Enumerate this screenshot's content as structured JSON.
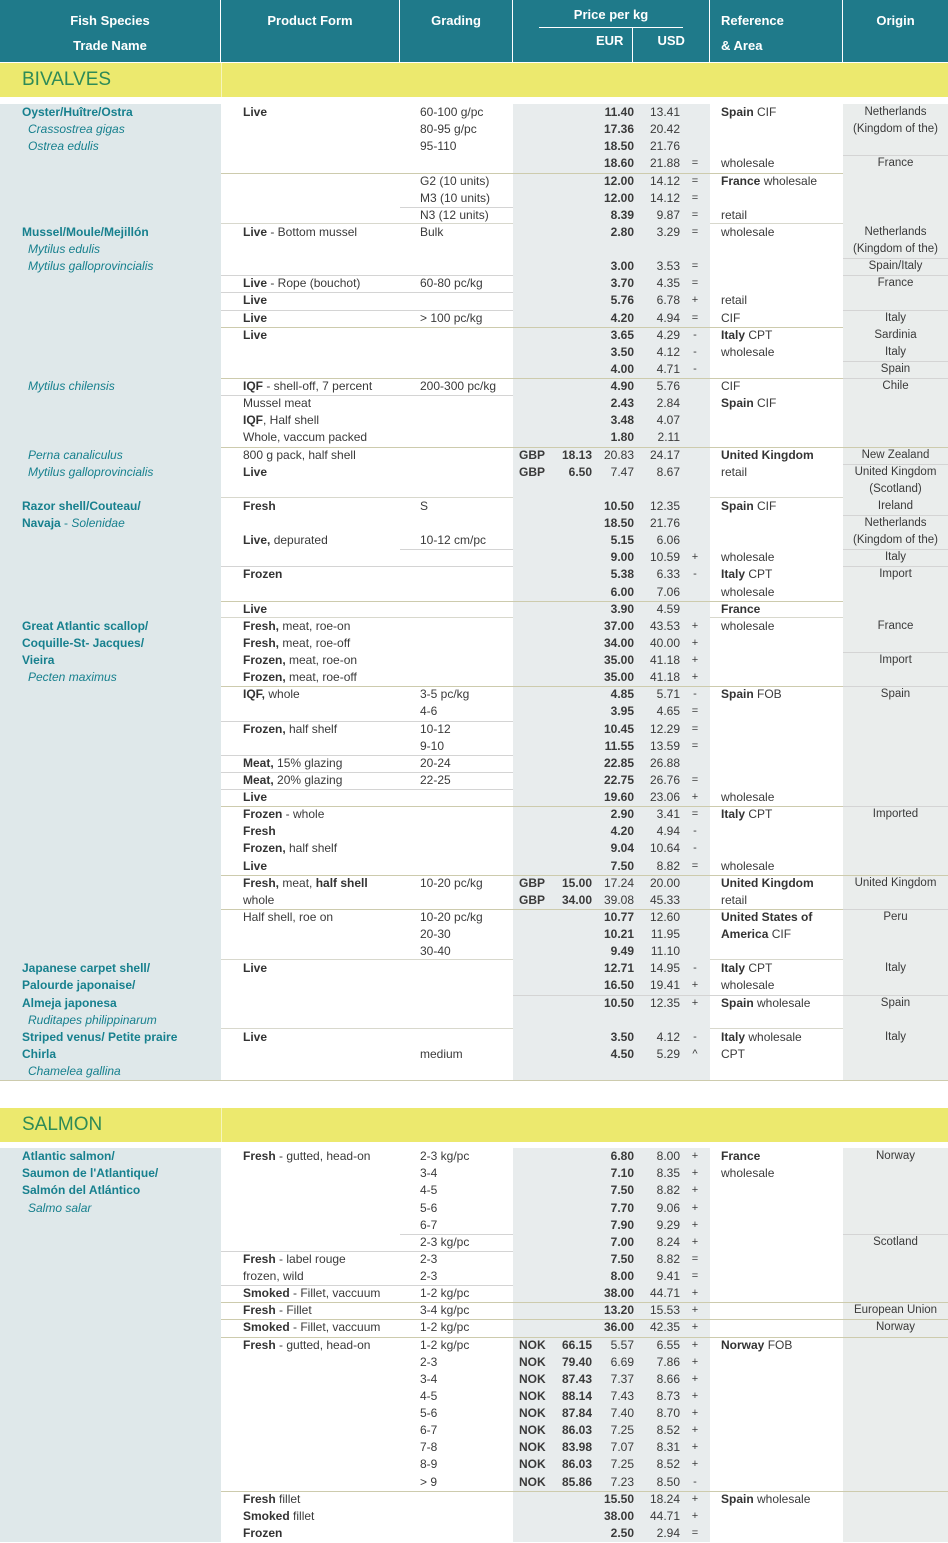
{
  "header": {
    "species_line1": "Fish Species",
    "species_line2": "Trade Name",
    "product_form": "Product Form",
    "grading": "Grading",
    "price": "Price per kg",
    "eur": "EUR",
    "usd": "USD",
    "reference_line1": "Reference",
    "reference_line2": "& Area",
    "origin": "Origin"
  },
  "colors": {
    "header_bg": "#1f7a8a",
    "band_bg": "#ece96e",
    "band_text": "#2e8b57",
    "species_text": "#17808e",
    "species_col_bg": "#dfe8ea",
    "price_block_bg": "#e8eced",
    "origin_col_bg": "#eaedec",
    "body_text": "#3a3a3a"
  },
  "sections": [
    {
      "title": "BIVALVES",
      "groups": [
        {
          "rows": [
            {
              "sp": "**Oyster/Huître/Ostra**",
              "f": "**Live**",
              "g": "60-100 g/pc",
              "e": "11.40",
              "u": "13.41",
              "r": "**Spain** CIF",
              "o": "Netherlands"
            },
            {
              "sp": "*Crassostrea gigas*",
              "g": "80-95 g/pc",
              "e": "17.36",
              "u": "20.42",
              "o": "(Kingdom of the)"
            },
            {
              "sp": "*Ostrea edulis*",
              "g": "95-110",
              "e": "18.50",
              "u": "21.76"
            },
            {
              "e": "18.60",
              "u": "21.88",
              "s": "=",
              "r": "wholesale",
              "o": "France",
              "sep": [
                "o"
              ]
            },
            {
              "g": "G2 (10 units)",
              "e": "12.00",
              "u": "14.12",
              "s": "=",
              "r": "**France** wholesale",
              "sep": [
                "fr"
              ]
            },
            {
              "g": "M3 (10 units)",
              "e": "12.00",
              "u": "14.12",
              "s": "="
            },
            {
              "g": "N3 (12 units)",
              "e": "8.39",
              "u": "9.87",
              "s": "=",
              "r": "retail",
              "sep": [
                "g"
              ]
            }
          ]
        },
        {
          "rows": [
            {
              "sp": "**Mussel/Moule/Mejillón**",
              "f": "**Live** - Bottom mussel",
              "g": "Bulk",
              "e": "2.80",
              "u": "3.29",
              "s": "=",
              "r": "wholesale",
              "o": "Netherlands"
            },
            {
              "sp": "*Mytilus edulis*",
              "o": "(Kingdom of the)"
            },
            {
              "sp": "*Mytilus galloprovincialis*",
              "e": "3.00",
              "u": "3.53",
              "s": "=",
              "o": "Spain/Italy",
              "sep": [
                "o"
              ]
            },
            {
              "f": "**Live** - Rope (bouchot)",
              "g": "60-80 pc/kg",
              "e": "3.70",
              "u": "4.35",
              "s": "=",
              "o": "France",
              "sep": [
                "fg",
                "o"
              ]
            },
            {
              "f": "**Live**",
              "e": "5.76",
              "u": "6.78",
              "s": "+",
              "r": "retail",
              "sep": [
                "fg"
              ]
            },
            {
              "f": "**Live**",
              "g": "> 100 pc/kg",
              "e": "4.20",
              "u": "4.94",
              "s": "=",
              "r": "CIF",
              "o": "Italy",
              "sep": [
                "fg",
                "o"
              ]
            },
            {
              "f": "**Live**",
              "e": "3.65",
              "u": "4.29",
              "s": "-",
              "r": "**Italy** CPT",
              "o": "Sardinia",
              "sep": [
                "fr"
              ]
            },
            {
              "e": "3.50",
              "u": "4.12",
              "s": "-",
              "r": "wholesale",
              "o": "Italy"
            },
            {
              "e": "4.00",
              "u": "4.71",
              "s": "-",
              "o": "Spain",
              "sep": [
                "o"
              ]
            },
            {
              "sp": "*Mytilus chilensis*",
              "f": "**IQF** - shell-off, 7 percent",
              "g": "200-300 pc/kg",
              "e": "4.90",
              "u": "5.76",
              "r": "CIF",
              "o": "Chile",
              "sep": [
                "fr",
                "o"
              ]
            },
            {
              "f": "Mussel meat",
              "e": "2.43",
              "u": "2.84",
              "r": "**Spain** CIF",
              "sep": [
                "fg"
              ]
            },
            {
              "f": "**IQF**, Half shell",
              "e": "3.48",
              "u": "4.07"
            },
            {
              "f": "Whole, vaccum packed",
              "e": "1.80",
              "u": "2.11"
            },
            {
              "sp": "*Perna canaliculus*",
              "f": "800 g pack, half shell",
              "cc": "GBP",
              "cv": "18.13",
              "e": "20.83",
              "u": "24.17",
              "r": "**United Kingdom**",
              "o": "New Zealand",
              "sep": [
                "fo"
              ]
            },
            {
              "sp": "*Mytilus galloprovincialis*",
              "f": "**Live**",
              "cc": "GBP",
              "cv": "6.50",
              "e": "7.47",
              "u": "8.67",
              "r": "retail",
              "o": "United Kingdom",
              "sep": [
                "o"
              ]
            },
            {
              "o": "(Scotland)"
            }
          ]
        },
        {
          "rows": [
            {
              "sp": "**Razor shell/Couteau/**",
              "f": "**Fresh**",
              "g": "S",
              "e": "10.50",
              "u": "12.35",
              "r": "**Spain** CIF",
              "o": "Ireland"
            },
            {
              "sp": "**Navaja** - *Solenidae*",
              "e": "18.50",
              "u": "21.76",
              "o": "Netherlands",
              "sep": [
                "o"
              ]
            },
            {
              "f": "**Live,** depurated",
              "g": "10-12 cm/pc",
              "e": "5.15",
              "u": "6.06",
              "o": "(Kingdom of the)"
            },
            {
              "e": "9.00",
              "u": "10.59",
              "s": "+",
              "r": "wholesale",
              "o": "Italy",
              "sep": [
                "g",
                "o"
              ]
            },
            {
              "f": "**Frozen**",
              "e": "5.38",
              "u": "6.33",
              "s": "-",
              "r": "**Italy** CPT",
              "o": "Import",
              "sep": [
                "fg",
                "o"
              ]
            },
            {
              "e": "6.00",
              "u": "7.06",
              "r": "wholesale"
            },
            {
              "f": "**Live**",
              "e": "3.90",
              "u": "4.59",
              "r": "**France**",
              "sep": [
                "fr"
              ]
            }
          ]
        },
        {
          "rows": [
            {
              "sp": "**Great Atlantic scallop/**",
              "f": "**Fresh,** meat, roe-on",
              "e": "37.00",
              "u": "43.53",
              "s": "+",
              "r": "wholesale",
              "o": "France"
            },
            {
              "sp": "**Coquille-St- Jacques/**",
              "f": "**Fresh,** meat, roe-off",
              "e": "34.00",
              "u": "40.00",
              "s": "+"
            },
            {
              "sp": "**Vieira**",
              "f": "**Frozen,** meat, roe-on",
              "e": "35.00",
              "u": "41.18",
              "s": "+",
              "o": "Import",
              "sep": [
                "o"
              ]
            },
            {
              "sp": "*Pecten maximus*",
              "f": "**Frozen,** meat, roe-off",
              "e": "35.00",
              "u": "41.18",
              "s": "+"
            },
            {
              "f": "**IQF,** whole",
              "g": "3-5 pc/kg",
              "e": "4.85",
              "u": "5.71",
              "s": "-",
              "r": "**Spain** FOB",
              "o": "Spain",
              "sep": [
                "fr",
                "o"
              ]
            },
            {
              "g": "4-6",
              "e": "3.95",
              "u": "4.65",
              "s": "="
            },
            {
              "f": "**Frozen,** half shelf",
              "g": "10-12",
              "e": "10.45",
              "u": "12.29",
              "s": "=",
              "sep": [
                "fg"
              ]
            },
            {
              "g": "9-10",
              "e": "11.55",
              "u": "13.59",
              "s": "="
            },
            {
              "f": "**Meat,** 15% glazing",
              "g": "20-24",
              "e": "22.85",
              "u": "26.88",
              "sep": [
                "fg"
              ]
            },
            {
              "f": "**Meat,** 20% glazing",
              "g": "22-25",
              "e": "22.75",
              "u": "26.76",
              "s": "=",
              "sep": [
                "fg"
              ]
            },
            {
              "f": "**Live**",
              "e": "19.60",
              "u": "23.06",
              "s": "+",
              "r": "wholesale",
              "sep": [
                "fg"
              ]
            },
            {
              "f": "**Frozen** - whole",
              "e": "2.90",
              "u": "3.41",
              "s": "=",
              "r": "**Italy** CPT",
              "o": "Imported",
              "sep": [
                "fr",
                "o"
              ]
            },
            {
              "f": "**Fresh**",
              "e": "4.20",
              "u": "4.94",
              "s": "-"
            },
            {
              "f": "**Frozen,** half shelf",
              "e": "9.04",
              "u": "10.64",
              "s": "-"
            },
            {
              "f": "**Live**",
              "e": "7.50",
              "u": "8.82",
              "s": "=",
              "r": "wholesale"
            },
            {
              "f": "**Fresh,** meat, **half shell**",
              "g": "10-20 pc/kg",
              "cc": "GBP",
              "cv": "15.00",
              "e": "17.24",
              "u": "20.00",
              "r": "**United Kingdom**",
              "o": "United Kingdom",
              "sep": [
                "fo"
              ]
            },
            {
              "f": "whole",
              "cc": "GBP",
              "cv": "34.00",
              "e": "39.08",
              "u": "45.33",
              "r": "retail"
            },
            {
              "f": "Half shell, roe on",
              "g": "10-20 pc/kg",
              "e": "10.77",
              "u": "12.60",
              "r": "**United States of**",
              "o": "Peru",
              "sep": [
                "fr",
                "o"
              ]
            },
            {
              "g": "20-30",
              "e": "10.21",
              "u": "11.95",
              "r": "**America** CIF"
            },
            {
              "g": "30-40",
              "e": "9.49",
              "u": "11.10"
            }
          ]
        },
        {
          "rows": [
            {
              "sp": "**Japanese carpet shell/**",
              "f": "**Live**",
              "e": "12.71",
              "u": "14.95",
              "s": "-",
              "r": "**Italy** CPT",
              "o": "Italy"
            },
            {
              "sp": "**Palourde japonaise/**",
              "e": "16.50",
              "u": "19.41",
              "s": "+",
              "r": "wholesale"
            },
            {
              "sp": "**Almeja japonesa**",
              "e": "10.50",
              "u": "12.35",
              "s": "+",
              "r": "**Spain** wholesale",
              "o": "Spain",
              "sep": [
                "pr",
                "o"
              ]
            },
            {
              "sp": "*Ruditapes philippinarum*"
            }
          ]
        },
        {
          "rows": [
            {
              "sp": "**Striped venus/ Petite praire**",
              "f": "**Live**",
              "e": "3.50",
              "u": "4.12",
              "s": "-",
              "r": "**Italy** wholesale",
              "o": "Italy"
            },
            {
              "sp": "**Chirla**",
              "g": "medium",
              "e": "4.50",
              "u": "5.29",
              "s": "^",
              "r": "CPT"
            },
            {
              "sp": "*Chamelea gallina*"
            }
          ]
        }
      ]
    },
    {
      "title": "SALMON",
      "groups": [
        {
          "rows": [
            {
              "sp": "**Atlantic salmon/**",
              "f": "**Fresh** - gutted, head-on",
              "g": "2-3 kg/pc",
              "e": "6.80",
              "u": "8.00",
              "s": "+",
              "r": "**France**",
              "o": "Norway"
            },
            {
              "sp": "**Saumon de l'Atlantique/**",
              "g": "3-4",
              "e": "7.10",
              "u": "8.35",
              "s": "+",
              "r": "wholesale"
            },
            {
              "sp": "**Salmón del Atlántico**",
              "g": "4-5",
              "e": "7.50",
              "u": "8.82",
              "s": "+"
            },
            {
              "sp": "*Salmo salar*",
              "g": "5-6",
              "e": "7.70",
              "u": "9.06",
              "s": "+"
            },
            {
              "g": "6-7",
              "e": "7.90",
              "u": "9.29",
              "s": "+"
            },
            {
              "g": "2-3 kg/pc",
              "e": "7.00",
              "u": "8.24",
              "s": "+",
              "o": "Scotland",
              "sep": [
                "g",
                "o"
              ]
            },
            {
              "f": "**Fresh** - label rouge",
              "g": "2-3",
              "e": "7.50",
              "u": "8.82",
              "s": "=",
              "sep": [
                "fg"
              ]
            },
            {
              "f": "frozen, wild",
              "g": "2-3",
              "e": "8.00",
              "u": "9.41",
              "s": "="
            },
            {
              "f": "**Smoked** - Fillet, vaccuum",
              "g": "1-2 kg/pc",
              "e": "38.00",
              "u": "44.71",
              "s": "+",
              "sep": [
                "fg"
              ]
            },
            {
              "f": "**Fresh** - Fillet",
              "g": "3-4 kg/pc",
              "e": "13.20",
              "u": "15.53",
              "s": "+",
              "o": "European Union",
              "sep": [
                "fo"
              ]
            },
            {
              "f": "**Smoked** - Fillet, vaccuum",
              "g": "1-2 kg/pc",
              "e": "36.00",
              "u": "42.35",
              "s": "+",
              "o": "Norway",
              "sep": [
                "fo"
              ]
            },
            {
              "f": "**Fresh** - gutted, head-on",
              "g": "1-2 kg/pc",
              "cc": "NOK",
              "cv": "66.15",
              "e": "5.57",
              "u": "6.55",
              "s": "+",
              "r": "**Norway** FOB",
              "sep": [
                "fo"
              ]
            },
            {
              "g": "2-3",
              "cc": "NOK",
              "cv": "79.40",
              "e": "6.69",
              "u": "7.86",
              "s": "+"
            },
            {
              "g": "3-4",
              "cc": "NOK",
              "cv": "87.43",
              "e": "7.37",
              "u": "8.66",
              "s": "+"
            },
            {
              "g": "4-5",
              "cc": "NOK",
              "cv": "88.14",
              "e": "7.43",
              "u": "8.73",
              "s": "+"
            },
            {
              "g": "5-6",
              "cc": "NOK",
              "cv": "87.84",
              "e": "7.40",
              "u": "8.70",
              "s": "+"
            },
            {
              "g": "6-7",
              "cc": "NOK",
              "cv": "86.03",
              "e": "7.25",
              "u": "8.52",
              "s": "+"
            },
            {
              "g": "7-8",
              "cc": "NOK",
              "cv": "83.98",
              "e": "7.07",
              "u": "8.31",
              "s": "+"
            },
            {
              "g": "8-9",
              "cc": "NOK",
              "cv": "86.03",
              "e": "7.25",
              "u": "8.52",
              "s": "+"
            },
            {
              "g": "> 9",
              "cc": "NOK",
              "cv": "85.86",
              "e": "7.23",
              "u": "8.50",
              "s": "-"
            },
            {
              "f": "**Fresh** fillet",
              "e": "15.50",
              "u": "18.24",
              "s": "+",
              "r": "**Spain** wholesale",
              "sep": [
                "fo"
              ]
            },
            {
              "f": "**Smoked** fillet",
              "e": "38.00",
              "u": "44.71",
              "s": "+"
            },
            {
              "f": "**Frozen**",
              "e": "2.50",
              "u": "2.94",
              "s": "="
            }
          ]
        }
      ]
    }
  ]
}
